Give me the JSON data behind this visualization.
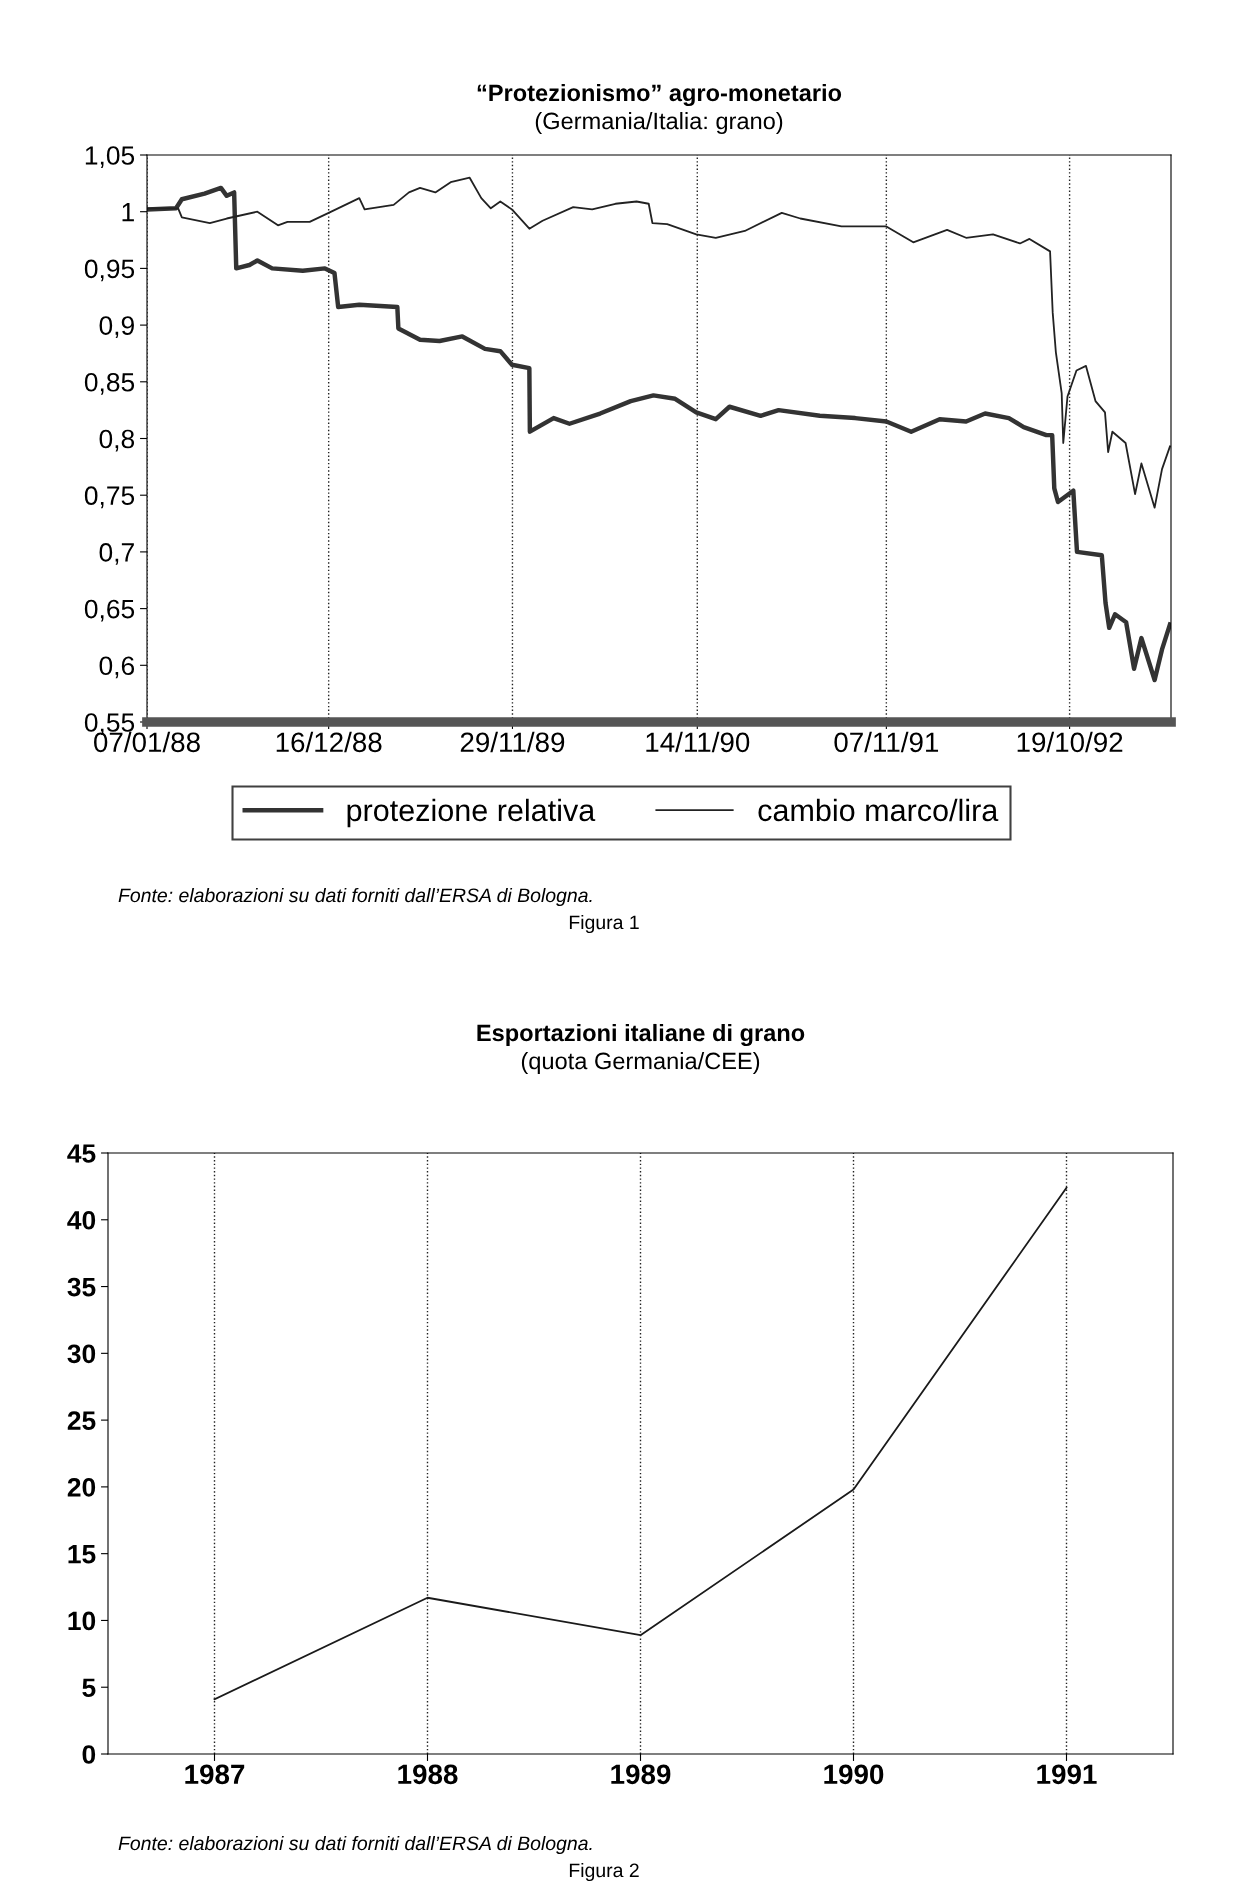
{
  "chart_data": [
    {
      "type": "line",
      "title": "“Protezionismo” agro-monetario",
      "subtitle": "(Germania/Italia: grano)",
      "xlim": [
        "1988-01-07",
        "1993-04-29"
      ],
      "xticks": [
        {
          "value": "1988-01-07",
          "label": "07/01/88"
        },
        {
          "value": "1988-12-16",
          "label": "16/12/88"
        },
        {
          "value": "1989-11-29",
          "label": "29/11/89"
        },
        {
          "value": "1990-11-14",
          "label": "14/11/90"
        },
        {
          "value": "1991-11-07",
          "label": "07/11/91"
        },
        {
          "value": "1992-10-19",
          "label": "19/10/92"
        }
      ],
      "ylim": [
        0.55,
        1.05
      ],
      "yticks": [
        {
          "value": 0.55,
          "label": "0,55"
        },
        {
          "value": 0.6,
          "label": "0,6"
        },
        {
          "value": 0.65,
          "label": "0,65"
        },
        {
          "value": 0.7,
          "label": "0,7"
        },
        {
          "value": 0.75,
          "label": "0,75"
        },
        {
          "value": 0.8,
          "label": "0,8"
        },
        {
          "value": 0.85,
          "label": "0,85"
        },
        {
          "value": 0.9,
          "label": "0,9"
        },
        {
          "value": 0.95,
          "label": "0,95"
        },
        {
          "value": 1,
          "label": "1"
        },
        {
          "value": 1.05,
          "label": "1,05"
        }
      ],
      "grid": "x",
      "legend": "bottom",
      "marker": "none",
      "line_style": "solid",
      "series": [
        {
          "name": "protezione relativa",
          "color": "#333333",
          "x": [
            "1988-01-07",
            "1988-03-02",
            "1988-03-13",
            "1988-04-25",
            "1988-05-26",
            "1988-06-06",
            "1988-06-20",
            "1988-06-24",
            "1988-07-19",
            "1988-08-03",
            "1988-08-31",
            "1988-10-28",
            "1988-12-09",
            "1988-12-27",
            "1989-01-03",
            "1989-02-12",
            "1989-04-25",
            "1989-04-27",
            "1989-06-07",
            "1989-07-14",
            "1989-08-26",
            "1989-10-08",
            "1989-11-06",
            "1989-11-28",
            "1989-12-31",
            "1990-01-01",
            "1990-02-15",
            "1990-03-17",
            "1990-05-14",
            "1990-07-11",
            "1990-08-23",
            "1990-10-03",
            "1990-11-12",
            "1990-12-19",
            "1991-01-14",
            "1991-03-14",
            "1991-04-17",
            "1991-07-04",
            "1991-09-09",
            "1991-11-07",
            "1991-12-24",
            "1992-02-16",
            "1992-04-06",
            "1992-05-12",
            "1992-06-26",
            "1992-07-24",
            "1992-09-05",
            "1992-09-16",
            "1992-09-20",
            "1992-09-27",
            "1992-10-26",
            "1992-11-02",
            "1992-12-19",
            "1992-12-26",
            "1993-01-02",
            "1993-01-13",
            "1993-02-03",
            "1993-02-18",
            "1993-03-04",
            "1993-03-29",
            "1993-04-12",
            "1993-04-27"
          ],
          "values": [
            1.002,
            1.003,
            1.011,
            1.016,
            1.021,
            1.014,
            1.017,
            0.95,
            0.953,
            0.957,
            0.95,
            0.948,
            0.95,
            0.946,
            0.916,
            0.918,
            0.916,
            0.897,
            0.887,
            0.886,
            0.89,
            0.879,
            0.877,
            0.865,
            0.862,
            0.806,
            0.818,
            0.813,
            0.822,
            0.833,
            0.838,
            0.835,
            0.823,
            0.817,
            0.828,
            0.82,
            0.825,
            0.82,
            0.818,
            0.815,
            0.806,
            0.817,
            0.815,
            0.822,
            0.818,
            0.81,
            0.803,
            0.803,
            0.756,
            0.744,
            0.754,
            0.7,
            0.697,
            0.655,
            0.633,
            0.645,
            0.638,
            0.597,
            0.624,
            0.587,
            0.614,
            0.636
          ]
        },
        {
          "name": "cambio marco/lira",
          "color": "#222222",
          "x": [
            "1988-01-07",
            "1988-03-06",
            "1988-03-13",
            "1988-05-05",
            "1988-06-06",
            "1988-08-03",
            "1988-09-11",
            "1988-09-29",
            "1988-11-10",
            "1988-12-16",
            "1989-02-12",
            "1989-02-22",
            "1989-04-18",
            "1989-05-17",
            "1989-06-07",
            "1989-07-06",
            "1989-08-04",
            "1989-09-09",
            "1989-10-01",
            "1989-10-19",
            "1989-11-06",
            "1989-11-28",
            "1989-12-31",
            "1990-01-25",
            "1990-03-24",
            "1990-04-29",
            "1990-06-12",
            "1990-07-22",
            "1990-08-14",
            "1990-08-21",
            "1990-09-18",
            "1990-11-12",
            "1990-12-19",
            "1991-02-12",
            "1991-04-23",
            "1991-05-28",
            "1991-08-14",
            "1991-11-07",
            "1991-12-28",
            "1992-03-01",
            "1992-04-06",
            "1992-05-27",
            "1992-07-17",
            "1992-08-04",
            "1992-09-12",
            "1992-09-17",
            "1992-09-23",
            "1992-10-04",
            "1992-10-07",
            "1992-10-15",
            "1992-11-01",
            "1992-11-19",
            "1992-12-07",
            "1992-12-25",
            "1992-12-31",
            "1993-01-08",
            "1993-02-02",
            "1993-02-20",
            "1993-03-04",
            "1993-03-29",
            "1993-04-12",
            "1993-04-27"
          ],
          "values": [
            1.003,
            1.003,
            0.995,
            0.99,
            0.994,
            1.0,
            0.988,
            0.991,
            0.991,
            0.999,
            1.012,
            1.002,
            1.006,
            1.017,
            1.021,
            1.017,
            1.026,
            1.03,
            1.012,
            1.003,
            1.009,
            1.002,
            0.985,
            0.992,
            1.004,
            1.002,
            1.007,
            1.009,
            1.007,
            0.99,
            0.989,
            0.98,
            0.977,
            0.983,
            0.999,
            0.994,
            0.987,
            0.987,
            0.973,
            0.984,
            0.977,
            0.98,
            0.972,
            0.976,
            0.965,
            0.911,
            0.876,
            0.84,
            0.796,
            0.837,
            0.86,
            0.864,
            0.833,
            0.823,
            0.788,
            0.806,
            0.796,
            0.751,
            0.778,
            0.739,
            0.773,
            0.793
          ]
        }
      ],
      "annotations": [
        "Fonte: elaborazioni su dati forniti dall’ERSA di Bologna.",
        "Figura 1"
      ]
    },
    {
      "type": "line",
      "title": "Esportazioni italiane di grano",
      "subtitle": "(quota Germania/CEE)",
      "categories": [
        "1987",
        "1988",
        "1989",
        "1990",
        "1991"
      ],
      "ylim": [
        0,
        45
      ],
      "yticks": [
        0,
        5,
        10,
        15,
        20,
        25,
        30,
        35,
        40,
        45
      ],
      "grid": "x",
      "marker": "none",
      "line_style": "solid",
      "series": [
        {
          "color": "#1a1a1a",
          "values": [
            4.1,
            11.7,
            8.9,
            19.8,
            42.4
          ]
        }
      ],
      "annotations": [
        "Fonte: elaborazioni su dati forniti dall’ERSA di Bologna.",
        "Figura 2"
      ]
    }
  ]
}
